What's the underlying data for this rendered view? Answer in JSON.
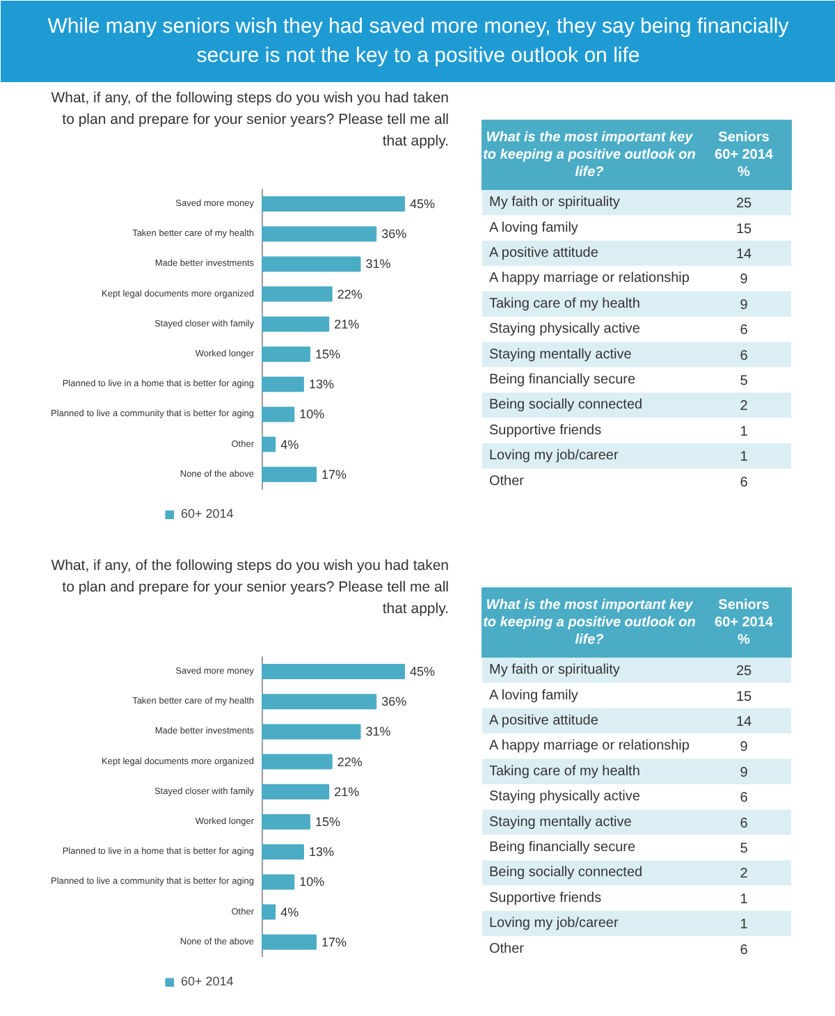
{
  "chart_data": [
    {
      "type": "other",
      "title": "While many seniors wish they had saved more money, they say being financially\nsecure is not the key to a positive outlook on life",
      "color": "#1f9bd4"
    },
    {
      "type": "bar",
      "orientation": "horizontal",
      "title": "What, if any, of the following steps do you wish you had taken\nto plan and prepare for your senior years? Please tell me all\nthat apply.",
      "categories": [
        "Saved more money",
        "Taken better care of my health",
        "Made better investments",
        "Kept legal documents more organized",
        "Stayed closer with family",
        "Worked longer",
        "Planned to live in a home that is better for aging",
        "Planned to live a community that is better for aging",
        "Other",
        "None of the above"
      ],
      "series": [
        {
          "name": "60+ 2014",
          "color": "#4bacc6",
          "values": [
            45,
            36,
            31,
            22,
            21,
            15,
            13,
            10,
            4,
            17
          ],
          "value_labels": [
            "45%",
            "36%",
            "31%",
            "22%",
            "21%",
            "15%",
            "13%",
            "10%",
            "4%",
            "17%"
          ]
        }
      ],
      "legend": "bottom"
    },
    {
      "type": "other",
      "xlabel": "What is the most important key\nto keeping a positive outlook on\nlife?",
      "ylabel": "Seniors\n60+ 2014\n%",
      "categories": [
        "My faith or spirituality",
        "A loving family",
        "A positive attitude",
        "A happy marriage or relationship",
        "Taking care of my health",
        "Staying physically active",
        "Staying mentally active",
        "Being financially secure",
        "Being socially connected",
        "Supportive friends",
        "Loving my job/career",
        "Other"
      ],
      "values": [
        25,
        15,
        14,
        9,
        9,
        6,
        6,
        5,
        2,
        1,
        1,
        6
      ],
      "data_labels": true
    },
    {
      "type": "bar",
      "orientation": "horizontal",
      "title": "What, if any, of the following steps do you wish you had taken\nto plan and prepare for your senior years? Please tell me all\nthat apply.",
      "categories": [
        "Saved more money",
        "Taken better care of my health",
        "Made better investments",
        "Kept legal documents more organized",
        "Stayed closer with family",
        "Worked longer",
        "Planned to live in a home that is better for aging",
        "Planned to live a community that is better for aging",
        "Other",
        "None of the above"
      ],
      "series": [
        {
          "name": "60+ 2014",
          "color": "#4bacc6",
          "values": [
            45,
            36,
            31,
            22,
            21,
            15,
            13,
            10,
            4,
            17
          ],
          "value_labels": [
            "45%",
            "36%",
            "31%",
            "22%",
            "21%",
            "15%",
            "13%",
            "10%",
            "4%",
            "17%"
          ]
        }
      ],
      "legend": "bottom"
    },
    {
      "type": "other",
      "xlabel": "What is the most important key\nto keeping a positive outlook on\nlife?",
      "ylabel": "Seniors\n60+ 2014\n%",
      "categories": [
        "My faith or spirituality",
        "A loving family",
        "A positive attitude",
        "A happy marriage or relationship",
        "Taking care of my health",
        "Staying physically active",
        "Staying mentally active",
        "Being financially secure",
        "Being socially connected",
        "Supportive friends",
        "Loving my job/career",
        "Other"
      ],
      "values": [
        25,
        15,
        14,
        9,
        9,
        6,
        6,
        5,
        2,
        1,
        1,
        6
      ],
      "data_labels": true
    }
  ]
}
